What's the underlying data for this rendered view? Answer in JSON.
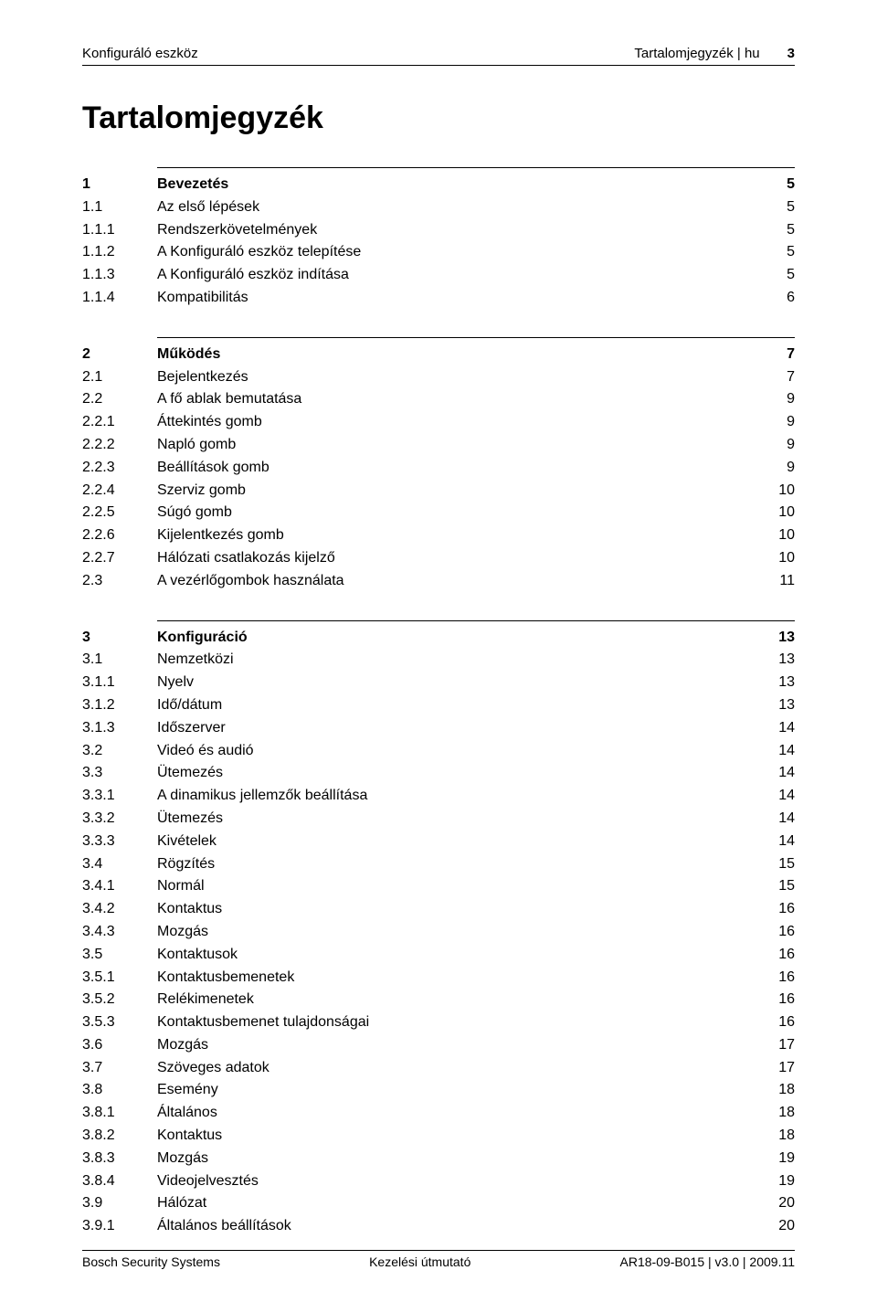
{
  "header": {
    "left": "Konfiguráló eszköz",
    "right_label": "Tartalomjegyzék | hu",
    "page_number": "3"
  },
  "title": "Tartalomjegyzék",
  "sections": [
    {
      "entries": [
        {
          "num": "1",
          "title": "Bevezetés",
          "page": "5",
          "level": 0
        },
        {
          "num": "1.1",
          "title": "Az első lépések",
          "page": "5",
          "level": 1
        },
        {
          "num": "1.1.1",
          "title": "Rendszerkövetelmények",
          "page": "5",
          "level": 1
        },
        {
          "num": "1.1.2",
          "title": "A Konfiguráló eszköz telepítése",
          "page": "5",
          "level": 1
        },
        {
          "num": "1.1.3",
          "title": "A Konfiguráló eszköz indítása",
          "page": "5",
          "level": 1
        },
        {
          "num": "1.1.4",
          "title": "Kompatibilitás",
          "page": "6",
          "level": 1
        }
      ]
    },
    {
      "entries": [
        {
          "num": "2",
          "title": "Működés",
          "page": "7",
          "level": 0
        },
        {
          "num": "2.1",
          "title": "Bejelentkezés",
          "page": "7",
          "level": 1
        },
        {
          "num": "2.2",
          "title": "A fő ablak bemutatása",
          "page": "9",
          "level": 1
        },
        {
          "num": "2.2.1",
          "title": "Áttekintés gomb",
          "page": "9",
          "level": 1
        },
        {
          "num": "2.2.2",
          "title": "Napló gomb",
          "page": "9",
          "level": 1
        },
        {
          "num": "2.2.3",
          "title": "Beállítások gomb",
          "page": "9",
          "level": 1
        },
        {
          "num": "2.2.4",
          "title": "Szerviz gomb",
          "page": "10",
          "level": 1
        },
        {
          "num": "2.2.5",
          "title": "Súgó gomb",
          "page": "10",
          "level": 1
        },
        {
          "num": "2.2.6",
          "title": "Kijelentkezés gomb",
          "page": "10",
          "level": 1
        },
        {
          "num": "2.2.7",
          "title": "Hálózati csatlakozás kijelző",
          "page": "10",
          "level": 1
        },
        {
          "num": "2.3",
          "title": "A vezérlőgombok használata",
          "page": "11",
          "level": 1
        }
      ]
    },
    {
      "entries": [
        {
          "num": "3",
          "title": "Konfiguráció",
          "page": "13",
          "level": 0
        },
        {
          "num": "3.1",
          "title": "Nemzetközi",
          "page": "13",
          "level": 1
        },
        {
          "num": "3.1.1",
          "title": "Nyelv",
          "page": "13",
          "level": 1
        },
        {
          "num": "3.1.2",
          "title": "Idő/dátum",
          "page": "13",
          "level": 1
        },
        {
          "num": "3.1.3",
          "title": "Időszerver",
          "page": "14",
          "level": 1
        },
        {
          "num": "3.2",
          "title": "Videó és audió",
          "page": "14",
          "level": 1
        },
        {
          "num": "3.3",
          "title": "Ütemezés",
          "page": "14",
          "level": 1
        },
        {
          "num": "3.3.1",
          "title": "A dinamikus jellemzők beállítása",
          "page": "14",
          "level": 1
        },
        {
          "num": "3.3.2",
          "title": "Ütemezés",
          "page": "14",
          "level": 1
        },
        {
          "num": "3.3.3",
          "title": "Kivételek",
          "page": "14",
          "level": 1
        },
        {
          "num": "3.4",
          "title": "Rögzítés",
          "page": "15",
          "level": 1
        },
        {
          "num": "3.4.1",
          "title": "Normál",
          "page": "15",
          "level": 1
        },
        {
          "num": "3.4.2",
          "title": "Kontaktus",
          "page": "16",
          "level": 1
        },
        {
          "num": "3.4.3",
          "title": "Mozgás",
          "page": "16",
          "level": 1
        },
        {
          "num": "3.5",
          "title": "Kontaktusok",
          "page": "16",
          "level": 1
        },
        {
          "num": "3.5.1",
          "title": "Kontaktusbemenetek",
          "page": "16",
          "level": 1
        },
        {
          "num": "3.5.2",
          "title": "Relékimenetek",
          "page": "16",
          "level": 1
        },
        {
          "num": "3.5.3",
          "title": "Kontaktusbemenet tulajdonságai",
          "page": "16",
          "level": 1
        },
        {
          "num": "3.6",
          "title": "Mozgás",
          "page": "17",
          "level": 1
        },
        {
          "num": "3.7",
          "title": "Szöveges adatok",
          "page": "17",
          "level": 1
        },
        {
          "num": "3.8",
          "title": "Esemény",
          "page": "18",
          "level": 1
        },
        {
          "num": "3.8.1",
          "title": "Általános",
          "page": "18",
          "level": 1
        },
        {
          "num": "3.8.2",
          "title": "Kontaktus",
          "page": "18",
          "level": 1
        },
        {
          "num": "3.8.3",
          "title": "Mozgás",
          "page": "19",
          "level": 1
        },
        {
          "num": "3.8.4",
          "title": "Videojelvesztés",
          "page": "19",
          "level": 1
        },
        {
          "num": "3.9",
          "title": "Hálózat",
          "page": "20",
          "level": 1
        },
        {
          "num": "3.9.1",
          "title": "Általános beállítások",
          "page": "20",
          "level": 1
        }
      ]
    }
  ],
  "footer": {
    "left": "Bosch Security Systems",
    "center": "Kezelési útmutató",
    "right": "AR18-09-B015 | v3.0 | 2009.11"
  }
}
